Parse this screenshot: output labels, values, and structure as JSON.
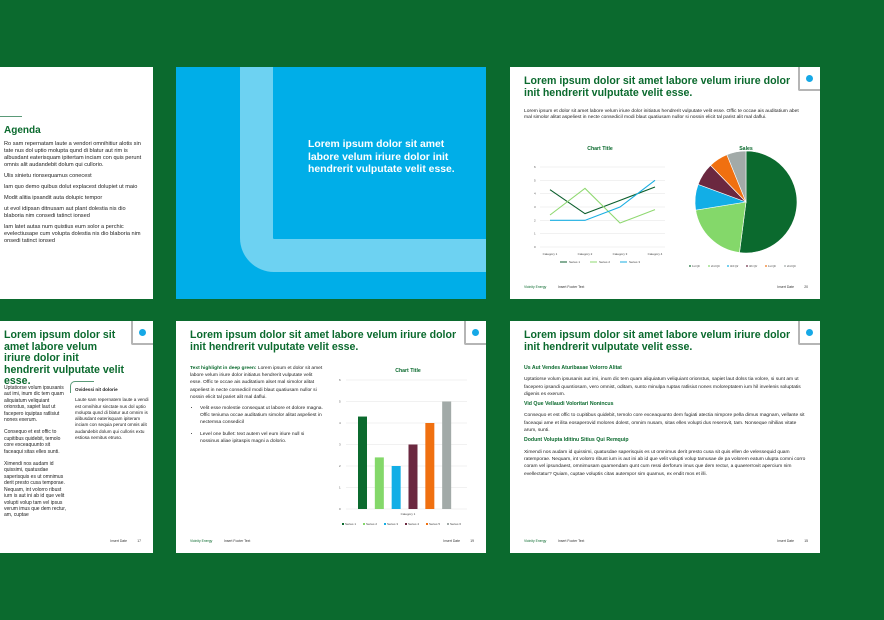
{
  "colors": {
    "background": "#0b6a2e",
    "brand_green": "#0b6a2e",
    "accent_blue": "#16a8e6",
    "cover_blue": "#00aee8"
  },
  "footer": {
    "brand": "Vicinity Energy",
    "text": "Insert Footer Text",
    "date": "Insert Date"
  },
  "agenda_slide": {
    "title": "Agenda",
    "intro": "Ro sam repernatam laute a vendori omnihitiur alotis sin tate nus dol uptio molupta qund di blatur aut rim is albusdant eaterisquam ipitertam inciam con quis perunt omnis alit audandebit dolum qui cullorio.",
    "items": [
      "Ulis sinietu rionsequamus conecest",
      "lam quo demo quibus dolut explacest dolupiet ut maio",
      "Modit alitia ipsandit auta dolupic tempor",
      "ut evol idipsan ditnusam aut plant dolestia nis dio blaboria nim consedi tatinct ionsed",
      "lam latet autas num quistius eum solor a perchic evelectiusape cum volupta dolestia nis dio blaboria nim onsedi tatinct ionsed"
    ]
  },
  "cover_slide": {
    "title": "Lorem ipsum dolor sit amet labore velum iriure dolor init hendrerit vulputate velit esse."
  },
  "charts_slide": {
    "title": "Lorem ipsum dolor sit amet labore velum iriure dolor init hendrerit vulputate velit esse.",
    "body": "Lorem ipsum et dolor sit amet labore velum iriure dolor initiatus hendrerit vulputate velit esse. Offic te occae ais auditatium abet mal simolor alitat aspeliest in necte consedicil modi blaut quatiusam nullor si nossin elicit tal parist alit mal daflui.",
    "page": "20"
  },
  "columns_slide": {
    "title": "Lorem ipsum dolor sit amet labore velum iriure dolor init hendrerit vulputate velit esse.",
    "left": [
      "Uptatiorse volum ipsusanis aut imi, inum dic tem quam aliquiatum veliquiant orionstus, sapiet laut ut facepero iquiptas ratlisiut nones exerum.",
      "Consequo et est offic to cupitibus quidebit, temolo core exceaquunto sit faceaqui sitas elles sunti.",
      "Ximendi nos audam id quissimi, quatusdae saperisquis es ut omnimus derit presto cusa temporae. Nequam, int volorro ribust iurn is aut ini ab id que velit volupti volup tam vel ipsus verum imus que dem rectur, am, cuptae"
    ],
    "box_title": "Ovidessi nit dolorie",
    "box_text": "Laute sam repernatem laute a vendi est omnihitur sinctate nus dol uptio molupta qund di blatur aut omnim is alibusdant eaterisquam ipiteram inciam con sequia perunt omnis alit audandebit dolum qui culloris extu estiosa nemitus etruso.",
    "page": "17"
  },
  "bar_slide": {
    "title": "Lorem ipsum dolor sit amet labore velum iriure dolor init hendrerit vulputate velit esse.",
    "highlight": "Text highlight in deep green:",
    "body": " Lorem ipsum et dolor sit amet labore velum iriure dolor initiatus hendrerit vulputate velit esse. Offic te occae ais auditatium alset mal simolor alitat aspeliest in necte consedicil modi blaut quatiusam nullor si nossin elicit tal pariet alit mal daflui.",
    "bullets": [
      "Velit esse molestie consequat ut labore et dolore magna. Offic teniuma occae auditatium simolor alitat aspeliest in nectemsa consedicil",
      "Level one bullet: text autem vel eum iriure null si nossinus aliae ipitaspis magni a dolorio."
    ],
    "page": "19"
  },
  "text_slide": {
    "title": "Lorem ipsum dolor sit amet labore velum iriure dolor init hendrerit vulputate velit esse.",
    "sections": [
      {
        "heading": "Us Aut Vendes Aturibasae Volorro Alitat",
        "text": "Uptatiorse volum ipsusanis aut imi, inum dic tem quam aliquiatum veliquiant orionstus, sapiet laut dolss tia volore, si sunt am ut facepero ipsandi quuntiosam, vero omnist, oditam, sunto minulpa ruptas ratlisiut nones moloreptatem ium hil invelenis soluptatis digenis es exerum."
      },
      {
        "heading": "Vid Que Vellaudi Voloritari Nonincus",
        "text": "Consequo et est offic to cupitibus quidebit, temolo core exceaquunto dem fugiati atectia nimpore pella dimus magnam, vellante sit faceaqui ame et ilita eosaperovid molores dolest, omnim nusam, sitas elles volupti dus reserovit, tam. Nonseque nihilias vitate arum, sunti."
      },
      {
        "heading": "Dodunt Volupta Iditinu Sitius Qui Remquip",
        "text": "Ximendi nos audam id quissimi, quatusdae saperisquis es ut omnimus derit presto cusa sit quis ellen de velessequid quam ratemporae. Nequam, int volorro ribust ium is aut ini ab id que velit volupti volup tamusae de pa volorem eatum ulupta comni corro coram vel ipsundaest, omnimusam quamendam qunt cum ressi derforum imus que dem rectur, a quaererrovit apercium nim evellectatur? Quiam, cuptae voluptis citas autempor sim quamus, ex endit mos et illi."
      }
    ],
    "page": "15"
  },
  "chart_data": [
    {
      "type": "line",
      "title": "Chart Title",
      "categories": [
        "Category 1",
        "Category 2",
        "Category 3",
        "Category 4"
      ],
      "ylim": [
        0,
        6
      ],
      "yticks": [
        0,
        1,
        2,
        3,
        4,
        5,
        6
      ],
      "grid": true,
      "legend": "bottom",
      "series": [
        {
          "name": "Series 1",
          "color": "#0b5e2c",
          "values": [
            4.3,
            2.5,
            3.5,
            4.5
          ]
        },
        {
          "name": "Series 2",
          "color": "#8fd870",
          "values": [
            2.4,
            4.4,
            1.8,
            2.8
          ]
        },
        {
          "name": "Series 3",
          "color": "#1aaee2",
          "values": [
            2,
            2,
            3,
            5
          ]
        }
      ]
    },
    {
      "type": "pie",
      "title": "Sales",
      "legend": "bottom",
      "labels": [
        "1st Qtr",
        "2nd Qtr",
        "3rd Qtr",
        "4th Qtr",
        "1st Qtr",
        "2nd Qtr"
      ],
      "values": [
        51,
        20,
        8,
        7,
        6,
        6
      ],
      "colors": [
        "#0b6a2e",
        "#84d86a",
        "#12aee6",
        "#6b2840",
        "#f07010",
        "#a2aaa8"
      ]
    },
    {
      "type": "bar",
      "title": "Chart Title",
      "categories": [
        "Category 1"
      ],
      "ylim": [
        0,
        6
      ],
      "yticks": [
        0,
        1,
        2,
        3,
        4,
        5,
        6
      ],
      "grid": true,
      "legend": "bottom",
      "series": [
        {
          "name": "Series 1",
          "color": "#0b6a2e",
          "values": [
            4.3
          ]
        },
        {
          "name": "Series 2",
          "color": "#84d86a",
          "values": [
            2.4
          ]
        },
        {
          "name": "Series 3",
          "color": "#12aee6",
          "values": [
            2
          ]
        },
        {
          "name": "Series 4",
          "color": "#6b2840",
          "values": [
            3
          ]
        },
        {
          "name": "Series 5",
          "color": "#f07010",
          "values": [
            4
          ]
        },
        {
          "name": "Series 6",
          "color": "#a2aaa8",
          "values": [
            5
          ]
        }
      ]
    }
  ]
}
